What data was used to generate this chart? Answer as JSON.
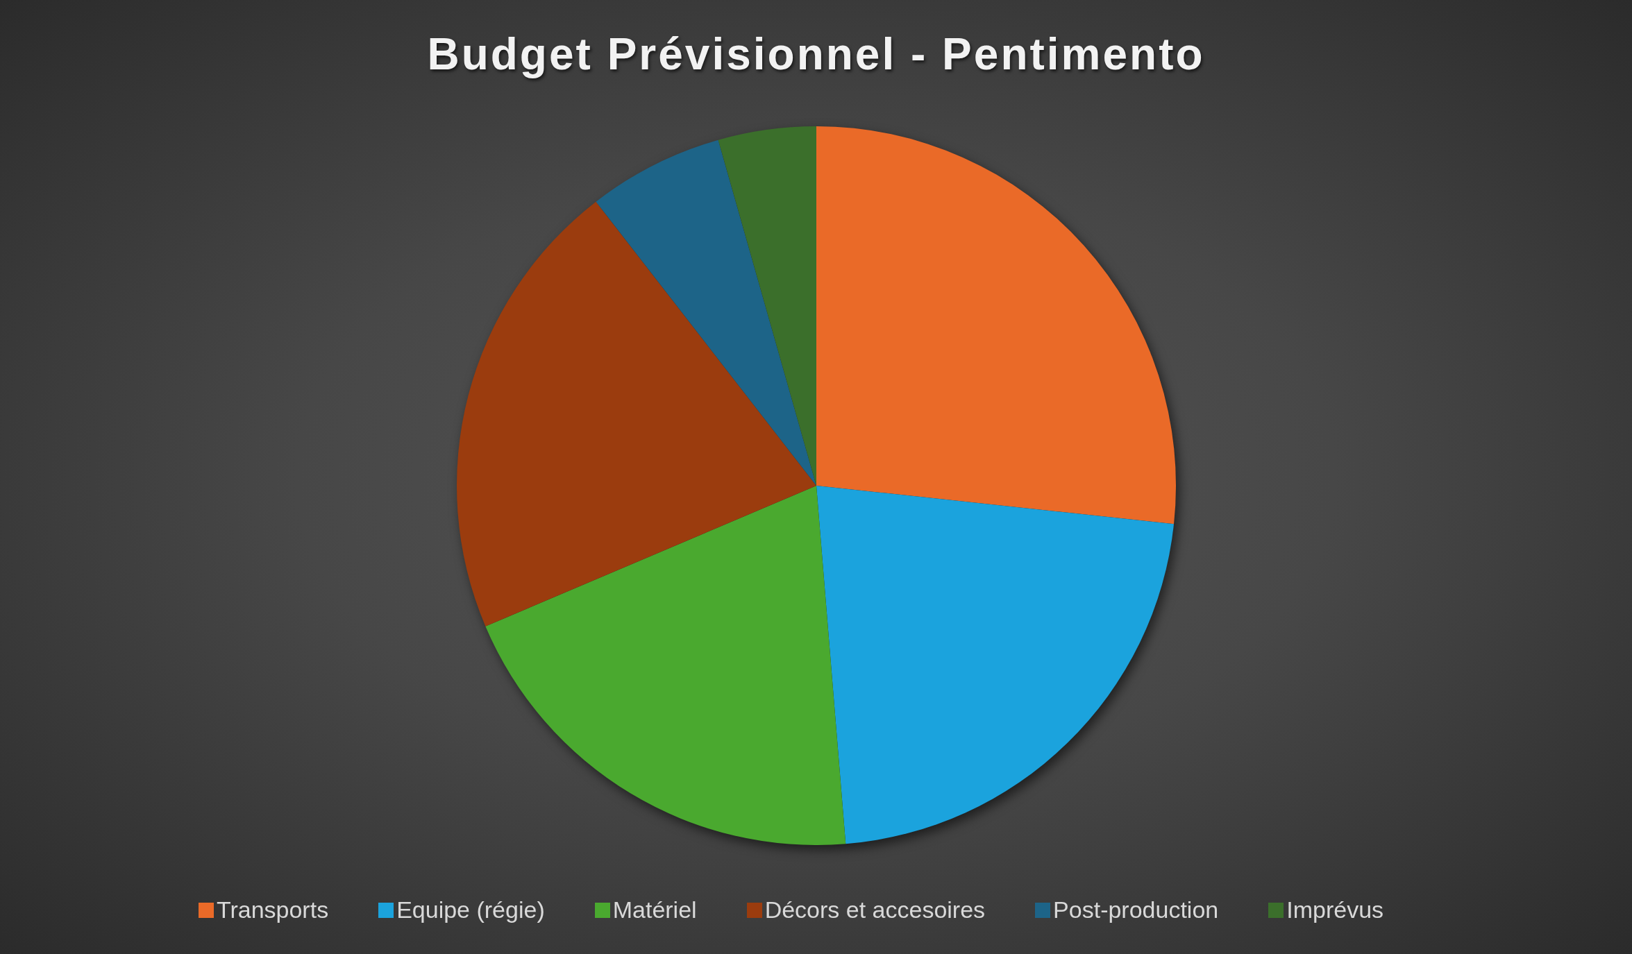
{
  "chart_data": {
    "type": "pie",
    "title": "Budget Prévisionnel - Pentimento",
    "categories": [
      "Transports",
      "Equipe (régie)",
      "Matériel",
      "Décors et accesoires",
      "Post-production",
      "Imprévus"
    ],
    "values": [
      26.7,
      22.0,
      19.9,
      20.9,
      6.1,
      4.4
    ],
    "colors": [
      "#ea6a28",
      "#1ba3dd",
      "#4aa92f",
      "#9b3c0e",
      "#1d6488",
      "#3b6f2b"
    ],
    "legend": "bottom"
  }
}
